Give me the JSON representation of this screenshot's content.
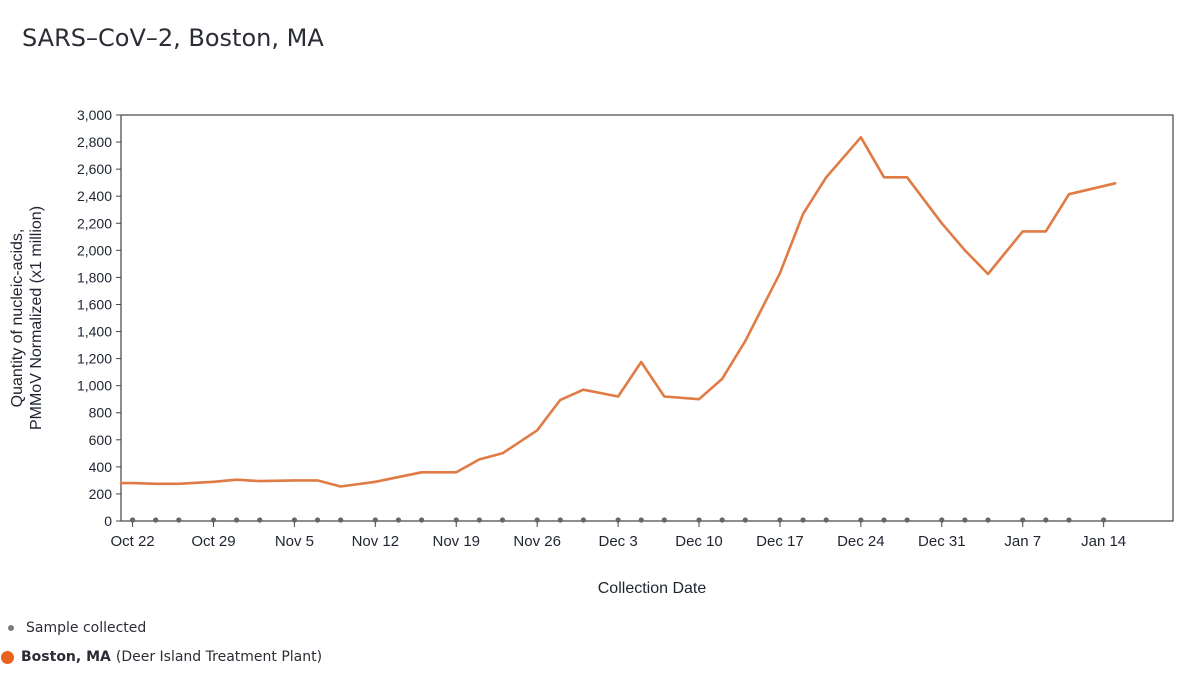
{
  "page": {
    "title": "SARS–CoV–2, Boston, MA"
  },
  "legend": {
    "sample_label": "Sample collected",
    "site_name": "Boston, MA",
    "site_detail": "(Deer Island Treatment Plant)"
  },
  "colors": {
    "line": "#e07b45",
    "sample_dot": "#666666",
    "legend_dot": "#e8641e",
    "frame": "#444444"
  },
  "chart_data": {
    "type": "line",
    "xlabel": "Collection Date",
    "ylabel": [
      "Quantity of nucleic-acids,",
      "PMMoV Normalized (x1 million)"
    ],
    "ylim": [
      0,
      3000
    ],
    "xlim": [
      "2023-10-21",
      "2024-01-20"
    ],
    "yticks": [
      0,
      200,
      400,
      600,
      800,
      1000,
      1200,
      1400,
      1600,
      1800,
      2000,
      2200,
      2400,
      2600,
      2800,
      3000
    ],
    "ytick_labels": [
      "0",
      "200",
      "400",
      "600",
      "800",
      "1,000",
      "1,200",
      "1,400",
      "1,600",
      "1,800",
      "2,000",
      "2,200",
      "2,400",
      "2,600",
      "2,800",
      "3,000"
    ],
    "xticks": [
      "2023-10-22",
      "2023-10-29",
      "2023-11-05",
      "2023-11-12",
      "2023-11-19",
      "2023-11-26",
      "2023-12-03",
      "2023-12-10",
      "2023-12-17",
      "2023-12-24",
      "2023-12-31",
      "2024-01-07",
      "2024-01-14"
    ],
    "xtick_labels": [
      "Oct 22",
      "Oct 29",
      "Nov 5",
      "Nov 12",
      "Nov 19",
      "Nov 26",
      "Dec 3",
      "Dec 10",
      "Dec 17",
      "Dec 24",
      "Dec 31",
      "Jan 7",
      "Jan 14"
    ],
    "grid": false,
    "legend_position": "bottom-left",
    "series": [
      {
        "name": "Boston, MA",
        "points": [
          [
            "2023-10-21",
            280
          ],
          [
            "2023-10-22",
            280
          ],
          [
            "2023-10-24",
            275
          ],
          [
            "2023-10-26",
            275
          ],
          [
            "2023-10-29",
            290
          ],
          [
            "2023-10-31",
            305
          ],
          [
            "2023-11-02",
            295
          ],
          [
            "2023-11-05",
            300
          ],
          [
            "2023-11-07",
            300
          ],
          [
            "2023-11-09",
            255
          ],
          [
            "2023-11-12",
            290
          ],
          [
            "2023-11-16",
            360
          ],
          [
            "2023-11-19",
            360
          ],
          [
            "2023-11-21",
            455
          ],
          [
            "2023-11-23",
            500
          ],
          [
            "2023-11-26",
            670
          ],
          [
            "2023-11-28",
            895
          ],
          [
            "2023-11-30",
            970
          ],
          [
            "2023-12-03",
            920
          ],
          [
            "2023-12-05",
            1175
          ],
          [
            "2023-12-07",
            920
          ],
          [
            "2023-12-10",
            900
          ],
          [
            "2023-12-12",
            1050
          ],
          [
            "2023-12-14",
            1330
          ],
          [
            "2023-12-17",
            1830
          ],
          [
            "2023-12-19",
            2270
          ],
          [
            "2023-12-21",
            2540
          ],
          [
            "2023-12-24",
            2835
          ],
          [
            "2023-12-26",
            2540
          ],
          [
            "2023-12-28",
            2540
          ],
          [
            "2023-12-31",
            2200
          ],
          [
            "2024-01-02",
            2000
          ],
          [
            "2024-01-04",
            1825
          ],
          [
            "2024-01-07",
            2140
          ],
          [
            "2024-01-09",
            2140
          ],
          [
            "2024-01-11",
            2415
          ],
          [
            "2024-01-15",
            2495
          ]
        ]
      }
    ],
    "samples_collected": [
      "2023-10-22",
      "2023-10-24",
      "2023-10-26",
      "2023-10-29",
      "2023-10-31",
      "2023-11-02",
      "2023-11-05",
      "2023-11-07",
      "2023-11-09",
      "2023-11-12",
      "2023-11-14",
      "2023-11-16",
      "2023-11-19",
      "2023-11-21",
      "2023-11-23",
      "2023-11-26",
      "2023-11-28",
      "2023-11-30",
      "2023-12-03",
      "2023-12-05",
      "2023-12-07",
      "2023-12-10",
      "2023-12-12",
      "2023-12-14",
      "2023-12-17",
      "2023-12-19",
      "2023-12-21",
      "2023-12-24",
      "2023-12-26",
      "2023-12-28",
      "2023-12-31",
      "2024-01-02",
      "2024-01-04",
      "2024-01-07",
      "2024-01-09",
      "2024-01-11",
      "2024-01-14"
    ]
  }
}
